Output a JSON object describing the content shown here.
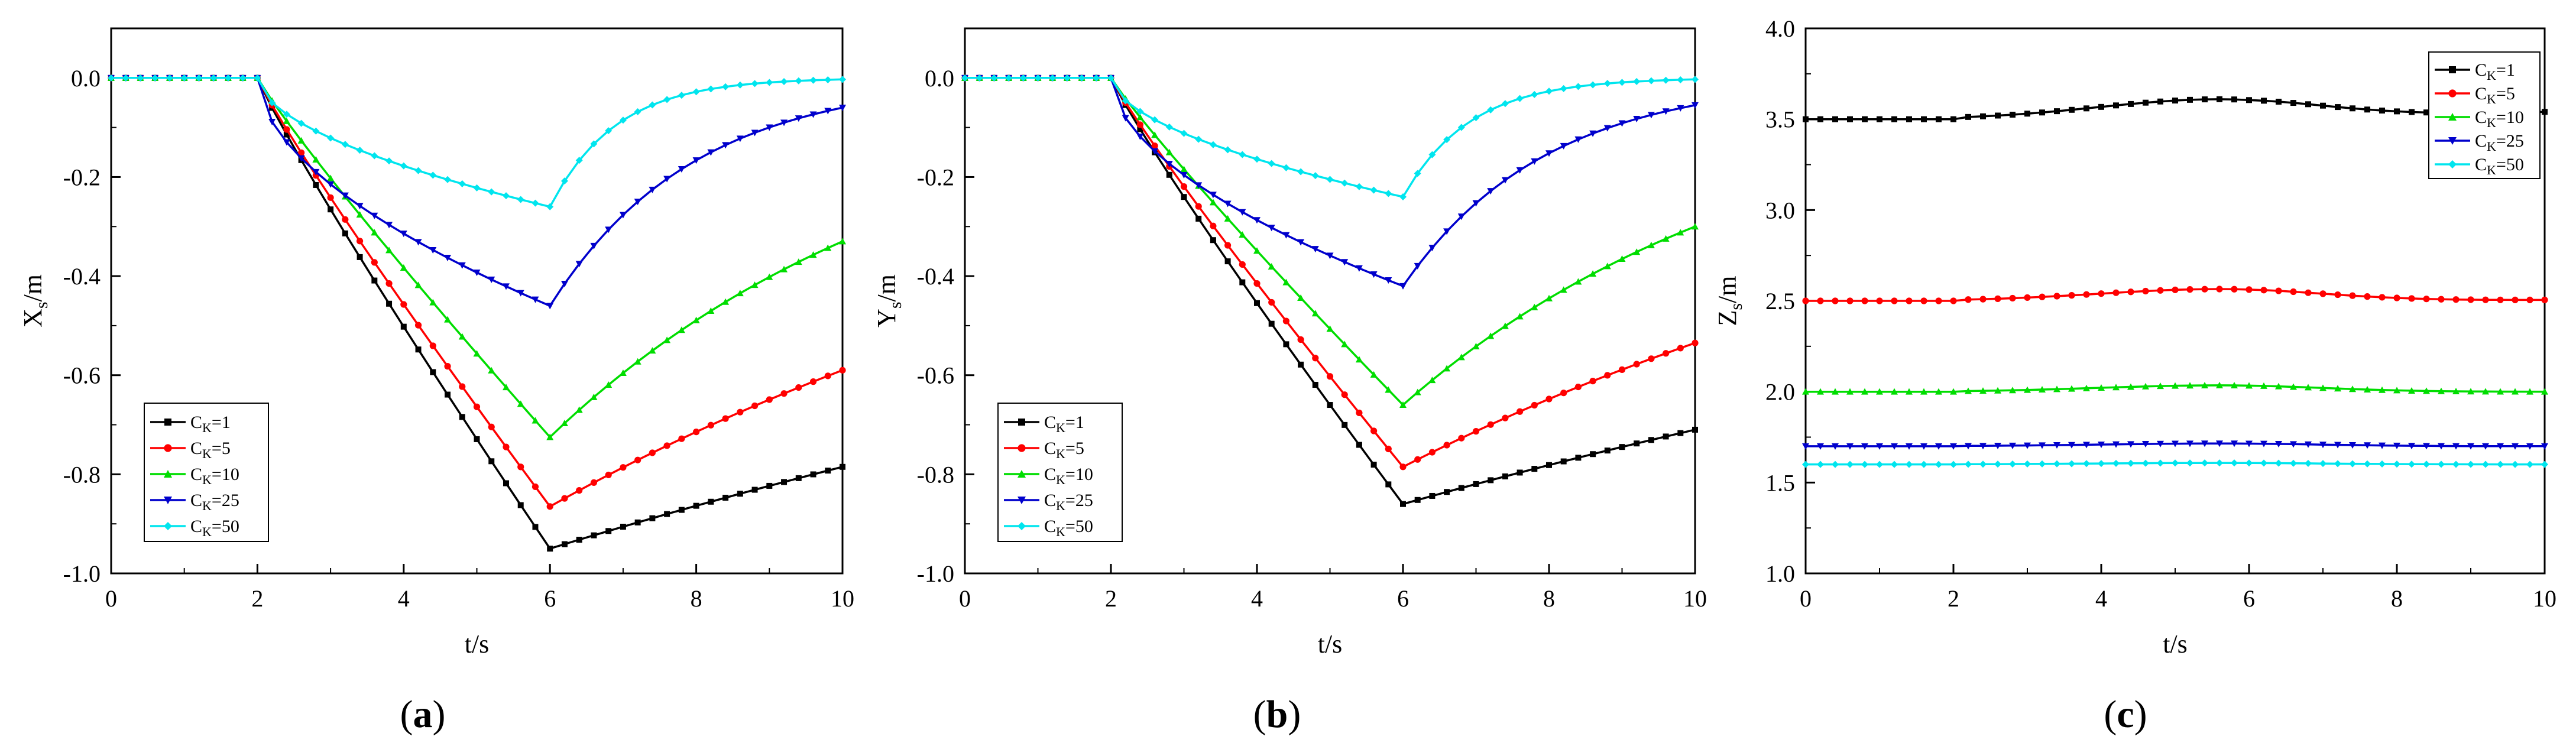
{
  "chart_data": [
    {
      "type": "line",
      "panel": "(a)",
      "xlabel": "t/s",
      "ylabel": "Xs/m",
      "ylabel_main": "X",
      "ylabel_sub": "s",
      "ylabel_tail": "/m",
      "xlim": [
        0,
        10
      ],
      "ylim": [
        -1.0,
        0.1
      ],
      "xticks": [
        "0",
        "2",
        "4",
        "6",
        "8",
        "10"
      ],
      "yticks": [
        "0.0",
        "-0.2",
        "-0.4",
        "-0.6",
        "-0.8",
        "-1.0"
      ],
      "legend_position": "bottom-left",
      "series": [
        {
          "name": "CK=1",
          "label_main": "C",
          "label_sub": "K",
          "label_tail": "=1",
          "color": "#000000",
          "marker": "square",
          "peak_t": 6,
          "peak": -0.95,
          "end": -0.785
        },
        {
          "name": "CK=5",
          "label_main": "C",
          "label_sub": "K",
          "label_tail": "=5",
          "color": "#ff0000",
          "marker": "circle",
          "peak_t": 6,
          "peak": -0.865,
          "end": -0.59
        },
        {
          "name": "CK=10",
          "label_main": "C",
          "label_sub": "K",
          "label_tail": "=10",
          "color": "#00dd00",
          "marker": "triangle-up",
          "peak_t": 6,
          "peak": -0.725,
          "end": -0.33
        },
        {
          "name": "CK=25",
          "label_main": "C",
          "label_sub": "K",
          "label_tail": "=25",
          "color": "#0000cc",
          "marker": "triangle-down",
          "peak_t": 6,
          "peak": -0.46,
          "end": -0.06
        },
        {
          "name": "CK=50",
          "label_main": "C",
          "label_sub": "K",
          "label_tail": "=50",
          "color": "#00e5ee",
          "marker": "diamond",
          "peak_t": 6,
          "peak": -0.26,
          "end": -0.003
        }
      ]
    },
    {
      "type": "line",
      "panel": "(b)",
      "xlabel": "t/s",
      "ylabel": "Ys/m",
      "ylabel_main": "Y",
      "ylabel_sub": "s",
      "ylabel_tail": "/m",
      "xlim": [
        0,
        10
      ],
      "ylim": [
        -1.0,
        0.1
      ],
      "xticks": [
        "0",
        "2",
        "4",
        "6",
        "8",
        "10"
      ],
      "yticks": [
        "0.0",
        "-0.2",
        "-0.4",
        "-0.6",
        "-0.8",
        "-1.0"
      ],
      "legend_position": "bottom-left",
      "series": [
        {
          "name": "CK=1",
          "label_main": "C",
          "label_sub": "K",
          "label_tail": "=1",
          "color": "#000000",
          "marker": "square",
          "peak_t": 6,
          "peak": -0.86,
          "end": -0.71
        },
        {
          "name": "CK=5",
          "label_main": "C",
          "label_sub": "K",
          "label_tail": "=5",
          "color": "#ff0000",
          "marker": "circle",
          "peak_t": 6,
          "peak": -0.785,
          "end": -0.535
        },
        {
          "name": "CK=10",
          "label_main": "C",
          "label_sub": "K",
          "label_tail": "=10",
          "color": "#00dd00",
          "marker": "triangle-up",
          "peak_t": 6,
          "peak": -0.66,
          "end": -0.3
        },
        {
          "name": "CK=25",
          "label_main": "C",
          "label_sub": "K",
          "label_tail": "=25",
          "color": "#0000cc",
          "marker": "triangle-down",
          "peak_t": 6,
          "peak": -0.42,
          "end": -0.055
        },
        {
          "name": "CK=50",
          "label_main": "C",
          "label_sub": "K",
          "label_tail": "=50",
          "color": "#00e5ee",
          "marker": "diamond",
          "peak_t": 6,
          "peak": -0.24,
          "end": -0.003
        }
      ]
    },
    {
      "type": "line",
      "panel": "(c)",
      "xlabel": "t/s",
      "ylabel": "Zs/m",
      "ylabel_main": "Z",
      "ylabel_sub": "s",
      "ylabel_tail": "/m",
      "xlim": [
        0,
        10
      ],
      "ylim": [
        1.0,
        4.0
      ],
      "xticks": [
        "0",
        "2",
        "4",
        "6",
        "8",
        "10"
      ],
      "yticks": [
        "1.0",
        "1.5",
        "2.0",
        "2.5",
        "3.0",
        "3.5",
        "4.0"
      ],
      "legend_position": "top-right",
      "series": [
        {
          "name": "CK=1",
          "label_main": "C",
          "label_sub": "K",
          "label_tail": "=1",
          "color": "#000000",
          "marker": "square",
          "base": 3.5,
          "bump": 0.11,
          "end": 3.54
        },
        {
          "name": "CK=5",
          "label_main": "C",
          "label_sub": "K",
          "label_tail": "=5",
          "color": "#ff0000",
          "marker": "circle",
          "base": 2.5,
          "bump": 0.065,
          "end": 2.505
        },
        {
          "name": "CK=10",
          "label_main": "C",
          "label_sub": "K",
          "label_tail": "=10",
          "color": "#00dd00",
          "marker": "triangle-up",
          "base": 2.0,
          "bump": 0.035,
          "end": 2.0
        },
        {
          "name": "CK=25",
          "label_main": "C",
          "label_sub": "K",
          "label_tail": "=25",
          "color": "#0000cc",
          "marker": "triangle-down",
          "base": 1.7,
          "bump": 0.015,
          "end": 1.7
        },
        {
          "name": "CK=50",
          "label_main": "C",
          "label_sub": "K",
          "label_tail": "=50",
          "color": "#00e5ee",
          "marker": "diamond",
          "base": 1.6,
          "bump": 0.008,
          "end": 1.6
        }
      ]
    }
  ],
  "captions": [
    {
      "open": "(",
      "letter": "a",
      "close": ")"
    },
    {
      "open": "(",
      "letter": "b",
      "close": ")"
    },
    {
      "open": "(",
      "letter": "c",
      "close": ")"
    }
  ]
}
